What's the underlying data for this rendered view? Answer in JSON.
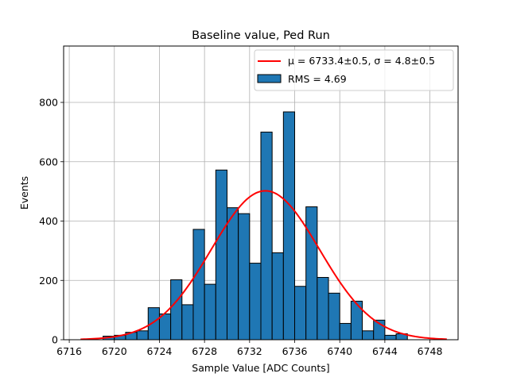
{
  "chart_data": {
    "type": "bar",
    "title": "Baseline value, Ped Run",
    "xlabel": "Sample Value [ADC Counts]",
    "ylabel": "Events",
    "xlim": [
      6715.5,
      6750.5
    ],
    "ylim": [
      0,
      990
    ],
    "xticks": [
      "6716",
      "6720",
      "6724",
      "6728",
      "6732",
      "6736",
      "6740",
      "6744",
      "6748"
    ],
    "yticks": [
      "0",
      "200",
      "400",
      "600",
      "800"
    ],
    "grid": true,
    "legend_position": "top-right",
    "bin_width": 1,
    "bins": [
      {
        "x": 6719.5,
        "count": 12
      },
      {
        "x": 6720.5,
        "count": 15
      },
      {
        "x": 6721.5,
        "count": 25
      },
      {
        "x": 6722.5,
        "count": 30
      },
      {
        "x": 6723.5,
        "count": 108
      },
      {
        "x": 6724.5,
        "count": 87
      },
      {
        "x": 6725.5,
        "count": 202
      },
      {
        "x": 6726.5,
        "count": 118
      },
      {
        "x": 6727.5,
        "count": 372
      },
      {
        "x": 6728.5,
        "count": 187
      },
      {
        "x": 6729.5,
        "count": 572
      },
      {
        "x": 6730.5,
        "count": 445
      },
      {
        "x": 6731.5,
        "count": 425
      },
      {
        "x": 6732.5,
        "count": 258
      },
      {
        "x": 6733.5,
        "count": 700
      },
      {
        "x": 6734.5,
        "count": 293
      },
      {
        "x": 6735.5,
        "count": 768
      },
      {
        "x": 6736.5,
        "count": 180
      },
      {
        "x": 6737.5,
        "count": 448
      },
      {
        "x": 6738.5,
        "count": 210
      },
      {
        "x": 6739.5,
        "count": 157
      },
      {
        "x": 6740.5,
        "count": 55
      },
      {
        "x": 6741.5,
        "count": 130
      },
      {
        "x": 6742.5,
        "count": 30
      },
      {
        "x": 6743.5,
        "count": 66
      },
      {
        "x": 6744.5,
        "count": 15
      },
      {
        "x": 6745.5,
        "count": 20
      }
    ],
    "fit": {
      "mu": 6733.4,
      "sigma": 4.8,
      "amplitude": 502,
      "x_range": [
        6717,
        6749.5
      ]
    },
    "series": [
      {
        "name": "μ = 6733.4±0.5, σ = 4.8±0.5",
        "kind": "line",
        "color": "#ff0000"
      },
      {
        "name": "RMS = 4.69",
        "kind": "histogram",
        "color": "#1f77b4",
        "edgecolor": "#000000"
      }
    ]
  }
}
